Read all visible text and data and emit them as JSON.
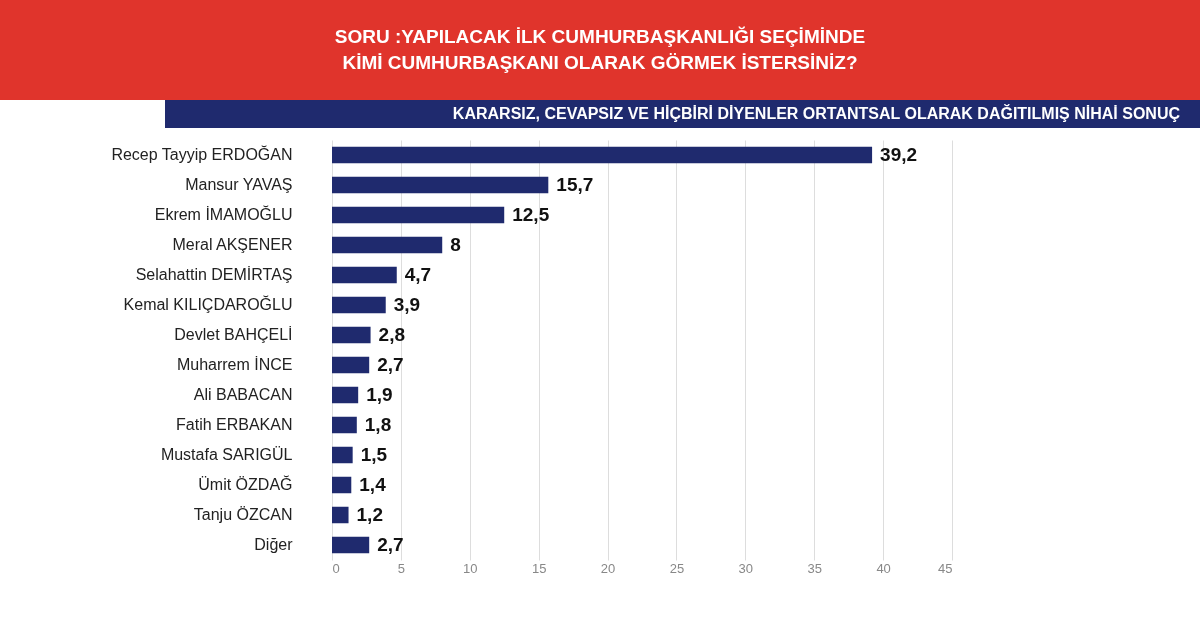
{
  "chart_data": {
    "type": "bar",
    "orientation": "horizontal",
    "title": "SORU :YAPILACAK İLK CUMHURBAŞKANLIĞI SEÇİMİNDE KİMİ CUMHURBAŞKANI OLARAK GÖRMEK İSTERSİNİZ?",
    "subtitle": "KARARSIZ, CEVAPSIZ VE HİÇBİRİ DİYENLER ORTANTSAL OLARAK DAĞITILMIŞ NİHAİ SONUÇ",
    "categories": [
      "Recep Tayyip ERDOĞAN",
      "Mansur YAVAŞ",
      "Ekrem İMAMOĞLU",
      "Meral AKŞENER",
      "Selahattin DEMİRTAŞ",
      "Kemal KILIÇDAROĞLU",
      "Devlet BAHÇELİ",
      "Muharrem İNCE",
      "Ali BABACAN",
      "Fatih ERBAKAN",
      "Mustafa SARIGÜL",
      "Ümit ÖZDAĞ",
      "Tanju ÖZCAN",
      "Diğer"
    ],
    "values": [
      39.2,
      15.7,
      12.5,
      8,
      4.7,
      3.9,
      2.8,
      2.7,
      1.9,
      1.8,
      1.5,
      1.4,
      1.2,
      2.7
    ],
    "color": "#1f2a6e",
    "xlim": [
      0,
      45
    ],
    "xticks": [
      0,
      5,
      10,
      15,
      20,
      25,
      30,
      35,
      40,
      45
    ],
    "grid": "x",
    "value_labels": [
      "39,2",
      "15,7",
      "12,5",
      "8",
      "4,7",
      "3,9",
      "2,8",
      "2,7",
      "1,9",
      "1,8",
      "1,5",
      "1,4",
      "1,2",
      "2,7"
    ]
  }
}
